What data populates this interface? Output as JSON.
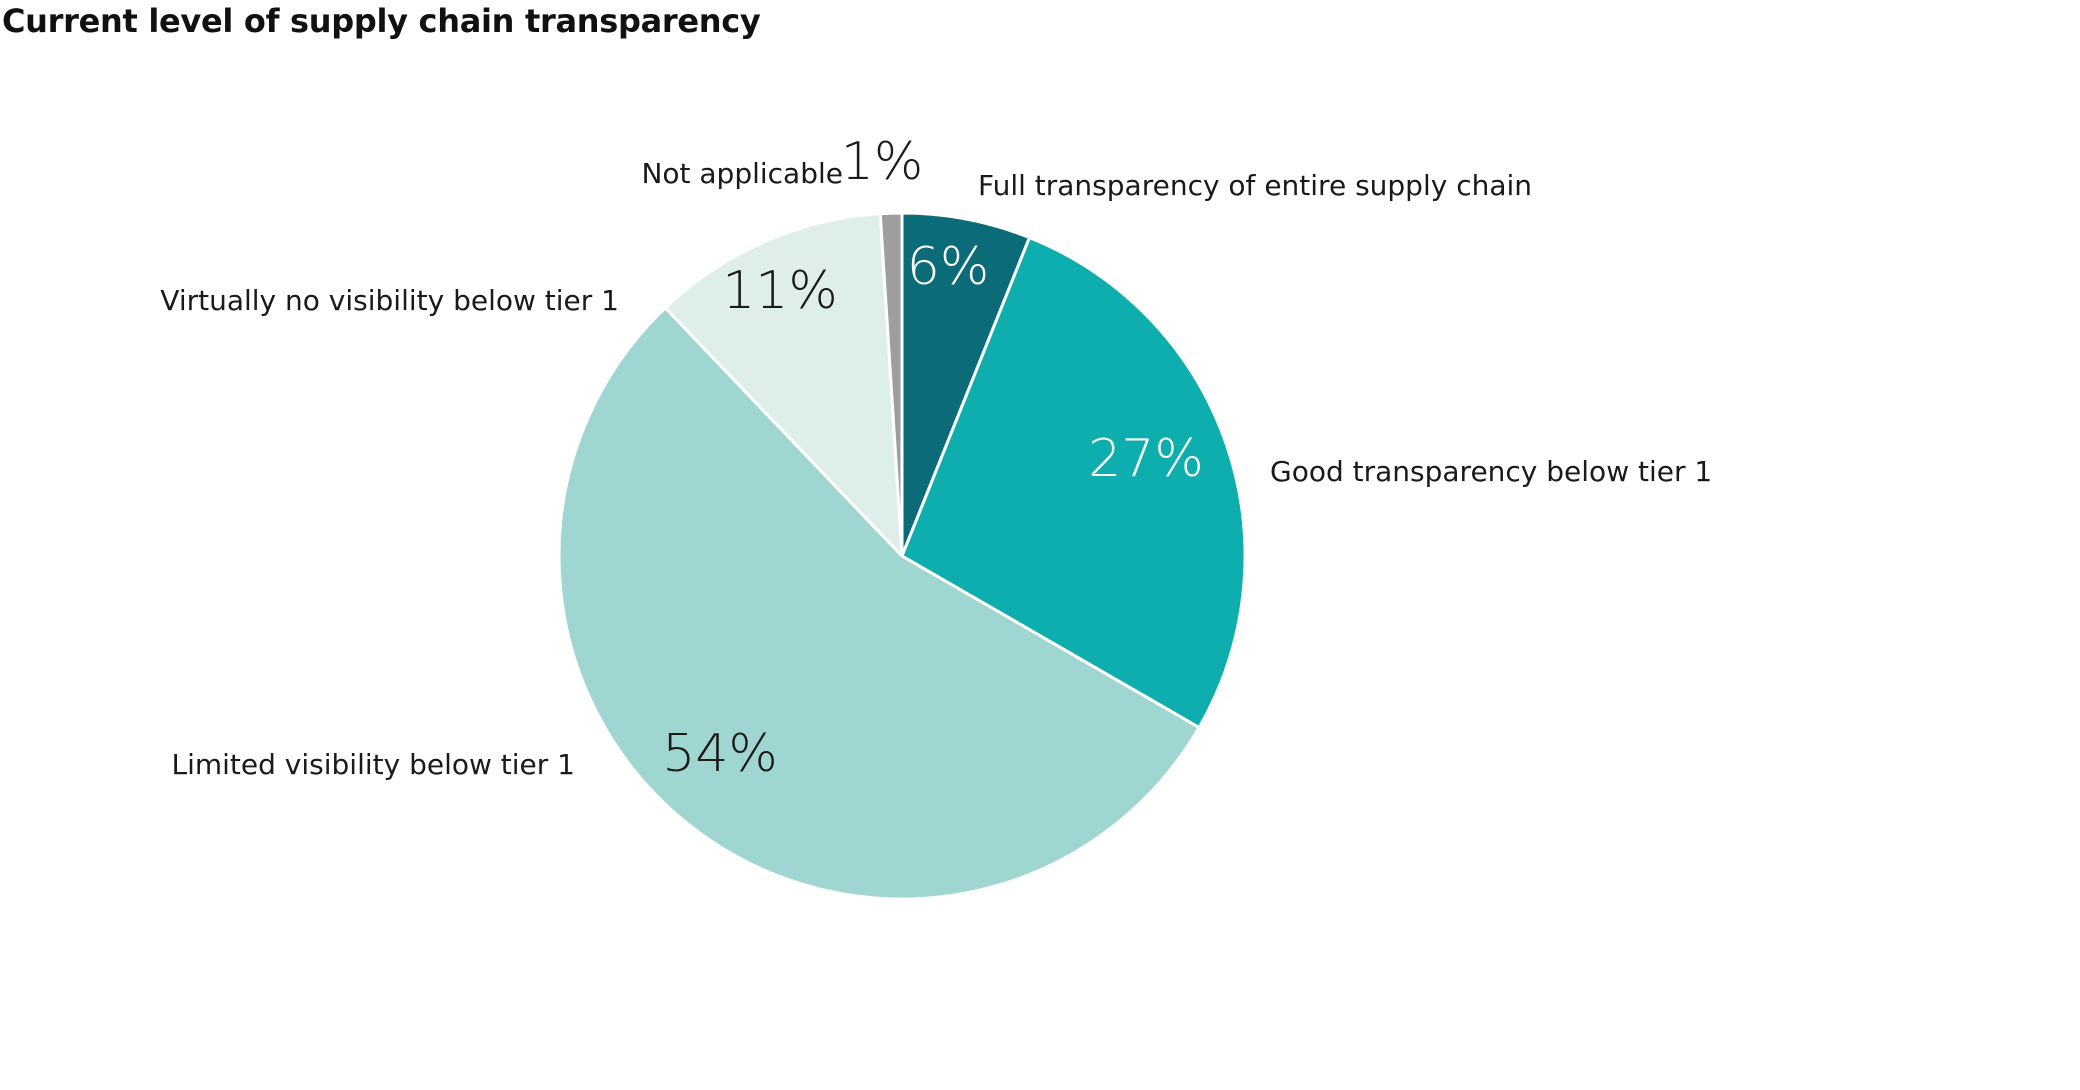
{
  "chart_data": {
    "type": "pie",
    "title": "Current level of supply chain transparency",
    "start_angle_deg": 0,
    "direction": "clockwise",
    "slices": [
      {
        "label": "Full transparency of entire supply chain",
        "value": 6,
        "value_label": "6%",
        "color": "#0b6b78",
        "value_color": "#ffffff"
      },
      {
        "label": "Good transparency below tier 1",
        "value": 27,
        "value_label": "27%",
        "color": "#0eaeae",
        "value_color": "#ffffff"
      },
      {
        "label": "Limited visibility below tier 1",
        "value": 54,
        "value_label": "54%",
        "color": "#9fd6d1",
        "value_color": "#1a1a1a"
      },
      {
        "label": "Virtually no visibility below tier 1",
        "value": 11,
        "value_label": "11%",
        "color": "#deefea",
        "value_color": "#1a1a1a"
      },
      {
        "label": "Not applicable",
        "value": 1,
        "value_label": "1%",
        "color": "#9e9e9e",
        "value_color": "#1a1a1a"
      }
    ]
  }
}
